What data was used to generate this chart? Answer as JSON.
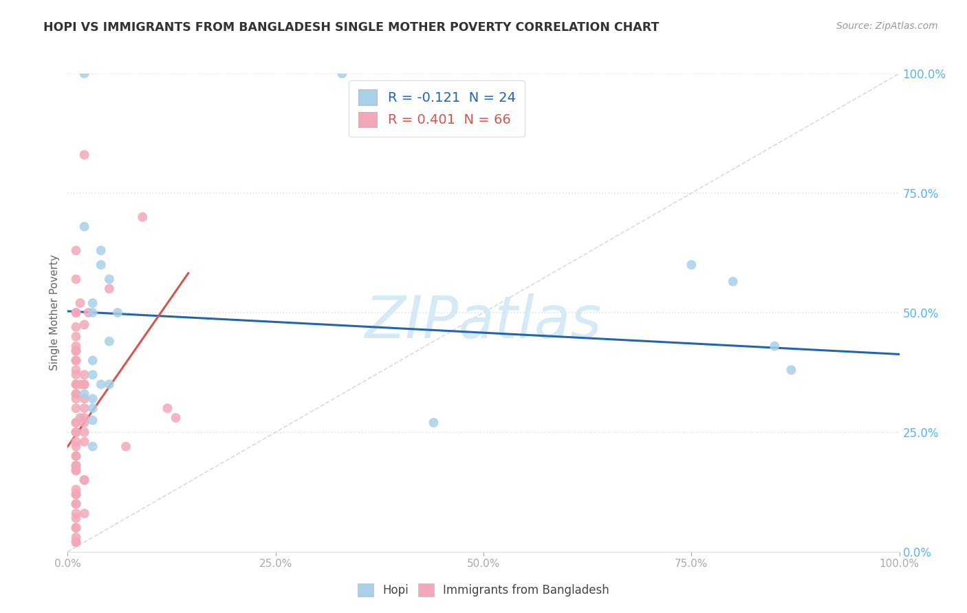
{
  "title": "HOPI VS IMMIGRANTS FROM BANGLADESH SINGLE MOTHER POVERTY CORRELATION CHART",
  "source": "Source: ZipAtlas.com",
  "ylabel": "Single Mother Poverty",
  "xlim": [
    0.0,
    1.0
  ],
  "ylim": [
    0.0,
    1.0
  ],
  "hopi_R": -0.121,
  "hopi_N": 24,
  "bangladesh_R": 0.401,
  "bangladesh_N": 66,
  "hopi_color": "#a8d0e8",
  "bangladesh_color": "#f2a8b8",
  "hopi_line_color": "#2166ac",
  "bangladesh_line_color": "#d9534f",
  "diagonal_color": "#cccccc",
  "background_color": "#ffffff",
  "watermark_text": "ZIPatlas",
  "watermark_color": "#d5eaf7",
  "legend_labels": [
    "Hopi",
    "Immigrants from Bangladesh"
  ],
  "ytick_right_color": "#5ab4f0",
  "xtick_color": "#aaaaaa",
  "grid_color": "#d0e8f8",
  "hopi_x": [
    0.02,
    0.33,
    0.02,
    0.04,
    0.04,
    0.05,
    0.03,
    0.03,
    0.06,
    0.05,
    0.03,
    0.03,
    0.04,
    0.05,
    0.02,
    0.03,
    0.03,
    0.44,
    0.75,
    0.8,
    0.85,
    0.87,
    0.03,
    0.03
  ],
  "hopi_y": [
    1.0,
    1.0,
    0.68,
    0.63,
    0.6,
    0.57,
    0.52,
    0.5,
    0.5,
    0.44,
    0.4,
    0.37,
    0.35,
    0.35,
    0.33,
    0.32,
    0.3,
    0.27,
    0.6,
    0.565,
    0.43,
    0.38,
    0.275,
    0.22
  ],
  "bangladesh_x": [
    0.02,
    0.09,
    0.01,
    0.01,
    0.015,
    0.025,
    0.01,
    0.01,
    0.02,
    0.01,
    0.01,
    0.01,
    0.01,
    0.01,
    0.01,
    0.01,
    0.01,
    0.01,
    0.02,
    0.01,
    0.02,
    0.01,
    0.02,
    0.015,
    0.01,
    0.01,
    0.01,
    0.02,
    0.01,
    0.02,
    0.02,
    0.015,
    0.01,
    0.01,
    0.02,
    0.02,
    0.01,
    0.01,
    0.02,
    0.01,
    0.01,
    0.05,
    0.07,
    0.12,
    0.13,
    0.01,
    0.01,
    0.01,
    0.01,
    0.01,
    0.01,
    0.02,
    0.02,
    0.01,
    0.01,
    0.01,
    0.01,
    0.01,
    0.02,
    0.01,
    0.01,
    0.01,
    0.01,
    0.01,
    0.01,
    0.01
  ],
  "bangladesh_y": [
    0.83,
    0.7,
    0.63,
    0.57,
    0.52,
    0.5,
    0.5,
    0.5,
    0.475,
    0.47,
    0.45,
    0.43,
    0.42,
    0.42,
    0.4,
    0.4,
    0.38,
    0.37,
    0.37,
    0.35,
    0.35,
    0.35,
    0.35,
    0.35,
    0.33,
    0.33,
    0.32,
    0.32,
    0.3,
    0.3,
    0.28,
    0.28,
    0.27,
    0.27,
    0.27,
    0.25,
    0.25,
    0.25,
    0.23,
    0.23,
    0.22,
    0.55,
    0.22,
    0.3,
    0.28,
    0.2,
    0.2,
    0.18,
    0.18,
    0.17,
    0.17,
    0.15,
    0.15,
    0.13,
    0.12,
    0.12,
    0.1,
    0.1,
    0.08,
    0.08,
    0.07,
    0.05,
    0.05,
    0.03,
    0.02,
    0.02
  ],
  "hopi_line_intercept": 0.503,
  "hopi_line_slope": -0.09,
  "bangladesh_line_intercept": 0.22,
  "bangladesh_line_slope": 2.5,
  "bangladesh_line_xmax": 0.145
}
